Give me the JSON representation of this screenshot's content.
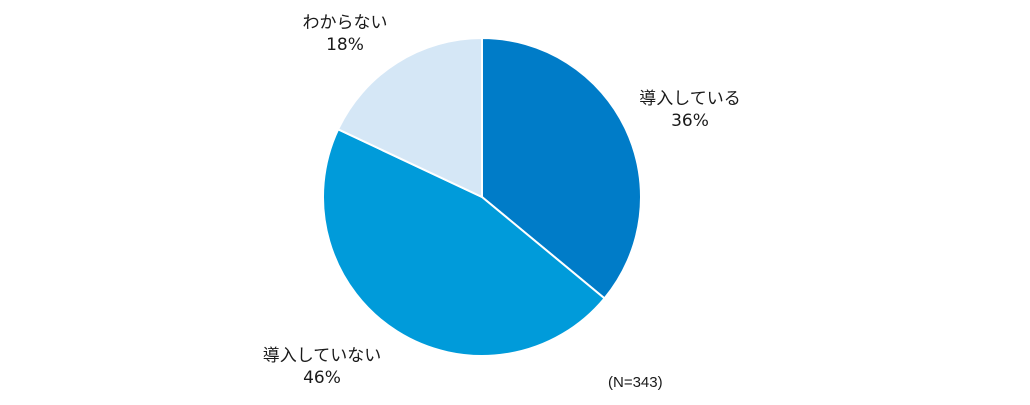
{
  "chart_data": {
    "type": "pie",
    "categories": [
      "導入している",
      "導入していない",
      "わからない"
    ],
    "values": [
      36,
      46,
      18
    ],
    "value_labels": [
      "36%",
      "46%",
      "18%"
    ],
    "colors": [
      "#007CC8",
      "#009BDA",
      "#D5E7F6"
    ],
    "start": "12 o'clock",
    "direction": "clockwise",
    "note": "(N=343)"
  }
}
